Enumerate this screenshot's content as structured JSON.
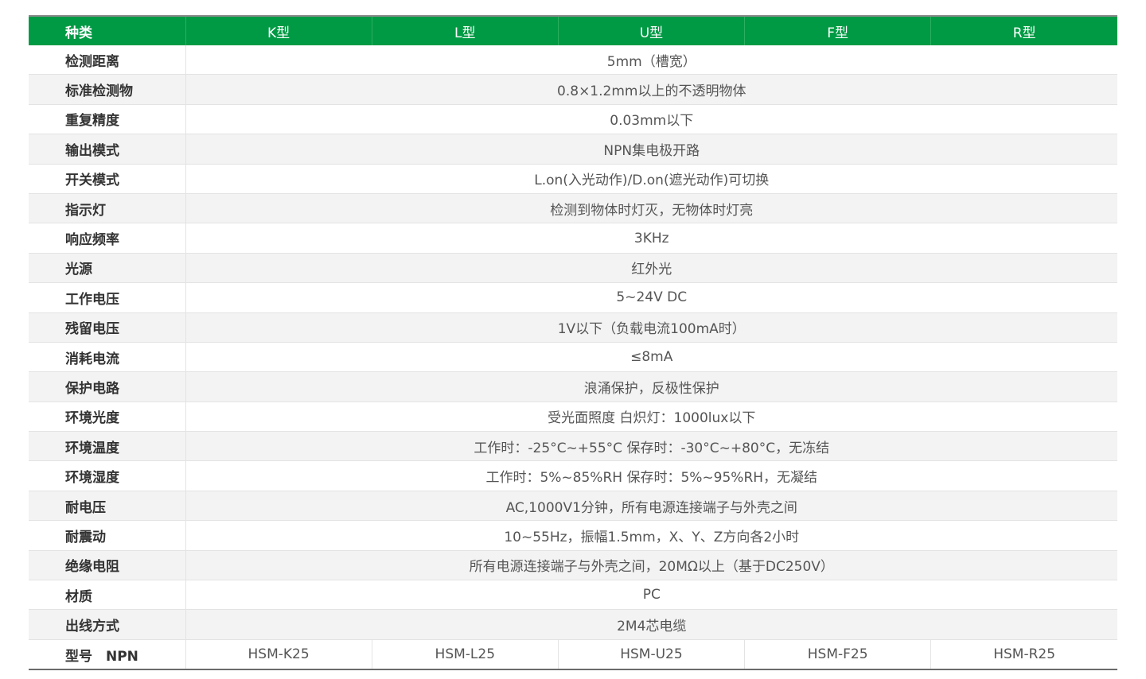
{
  "header": {
    "label": "种类",
    "types": [
      "K型",
      "L型",
      "U型",
      "F型",
      "R型"
    ]
  },
  "rows": [
    {
      "label": "检测距离",
      "value": "5mm（槽宽）"
    },
    {
      "label": "标准检测物",
      "value": "0.8×1.2mm以上的不透明物体"
    },
    {
      "label": "重复精度",
      "value": "0.03mm以下"
    },
    {
      "label": "输出模式",
      "value": "NPN集电极开路"
    },
    {
      "label": "开关模式",
      "value": "L.on(入光动作)/D.on(遮光动作)可切换"
    },
    {
      "label": "指示灯",
      "value": "检测到物体时灯灭，无物体时灯亮"
    },
    {
      "label": "响应频率",
      "value": "3KHz"
    },
    {
      "label": "光源",
      "value": "红外光"
    },
    {
      "label": "工作电压",
      "value": "5~24V DC"
    },
    {
      "label": "残留电压",
      "value": "1V以下（负载电流100mA时）"
    },
    {
      "label": "消耗电流",
      "value": "≤8mA"
    },
    {
      "label": "保护电路",
      "value": "浪涌保护，反极性保护"
    },
    {
      "label": "环境光度",
      "value": "受光面照度 白炽灯：1000lux以下"
    },
    {
      "label": "环境温度",
      "value": "工作时：-25°C~+55°C  保存时：-30°C~+80°C，无冻结"
    },
    {
      "label": "环境湿度",
      "value": "工作时：5%~85%RH  保存时：5%~95%RH，无凝结"
    },
    {
      "label": "耐电压",
      "value": "AC,1000V1分钟，所有电源连接端子与外壳之间"
    },
    {
      "label": "耐震动",
      "value": "10~55Hz，振幅1.5mm，X、Y、Z方向各2小时"
    },
    {
      "label": "绝缘电阻",
      "value": "所有电源连接端子与外壳之间，20MΩ以上（基于DC250V）"
    },
    {
      "label": "材质",
      "value": "PC"
    },
    {
      "label": "出线方式",
      "value": "2M4芯电缆"
    }
  ],
  "model_row": {
    "label": "型号　NPN",
    "models": [
      "HSM-K25",
      "HSM-L25",
      "HSM-U25",
      "HSM-F25",
      "HSM-R25"
    ]
  },
  "colors": {
    "header_bg": "#009a44",
    "alt_row_bg": "#f3f3f3"
  }
}
